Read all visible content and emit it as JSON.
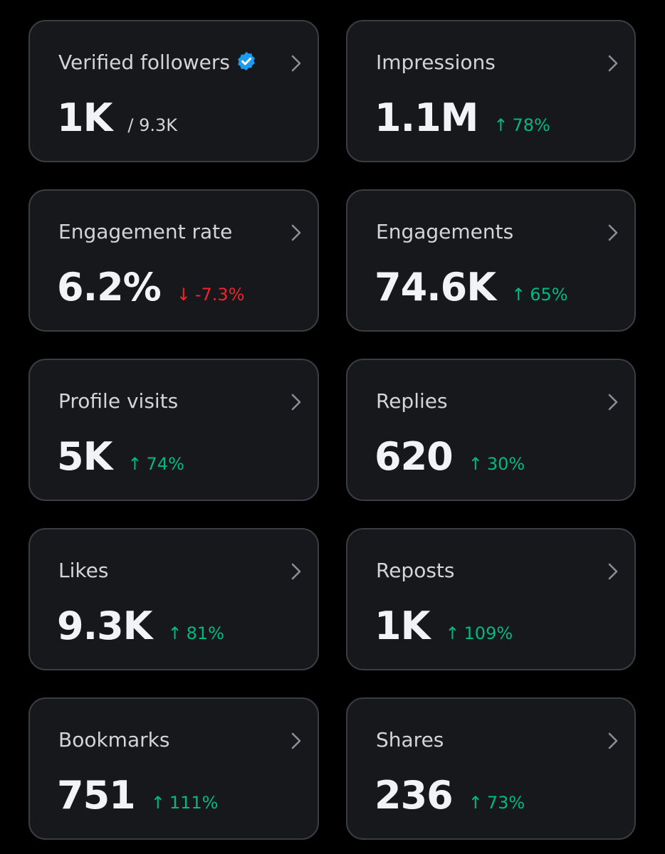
{
  "colors": {
    "background": "#000000",
    "card_background": "#16181c",
    "card_border": "#3a3d42",
    "positive": "#00ba7c",
    "negative": "#f4212e",
    "verified": "#1d9bf0"
  },
  "cards": [
    {
      "title": "Verified followers",
      "value": "1K",
      "sub": "/ 9.3K",
      "icon": "verified-badge-icon"
    },
    {
      "title": "Impressions",
      "value": "1.1M",
      "arrow": "↑",
      "change": "78%",
      "direction": "up"
    },
    {
      "title": "Engagement rate",
      "value": "6.2%",
      "arrow": "↓",
      "change": "-7.3%",
      "direction": "down"
    },
    {
      "title": "Engagements",
      "value": "74.6K",
      "arrow": "↑",
      "change": "65%",
      "direction": "up"
    },
    {
      "title": "Profile visits",
      "value": "5K",
      "arrow": "↑",
      "change": "74%",
      "direction": "up"
    },
    {
      "title": "Replies",
      "value": "620",
      "arrow": "↑",
      "change": "30%",
      "direction": "up"
    },
    {
      "title": "Likes",
      "value": "9.3K",
      "arrow": "↑",
      "change": "81%",
      "direction": "up"
    },
    {
      "title": "Reposts",
      "value": "1K",
      "arrow": "↑",
      "change": "109%",
      "direction": "up"
    },
    {
      "title": "Bookmarks",
      "value": "751",
      "arrow": "↑",
      "change": "111%",
      "direction": "up"
    },
    {
      "title": "Shares",
      "value": "236",
      "arrow": "↑",
      "change": "73%",
      "direction": "up"
    }
  ]
}
